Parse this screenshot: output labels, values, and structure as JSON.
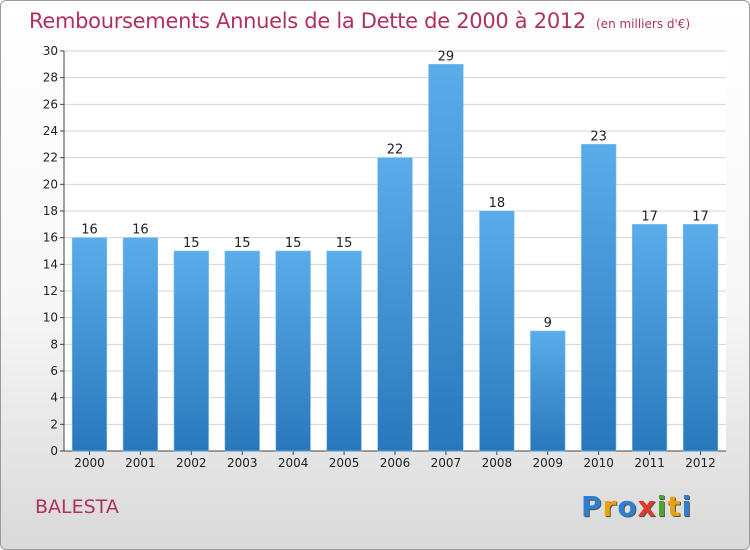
{
  "header": {
    "title": "Remboursements Annuels de la Dette de 2000 à 2012",
    "unit": "(en milliers d'€)"
  },
  "footer": {
    "commune": "BALESTA",
    "logo_letters": [
      "P",
      "r",
      "o",
      "x",
      "i",
      "t",
      "i"
    ],
    "logo_colors": [
      "#2e7fd0",
      "#e8a20c",
      "#2e7fd0",
      "#e03a2a",
      "#49a72e",
      "#e8a20c",
      "#2e7fd0"
    ]
  },
  "chart_data": {
    "type": "bar",
    "title": "Remboursements Annuels de la Dette de 2000 à 2012",
    "xlabel": "",
    "ylabel": "",
    "categories": [
      "2000",
      "2001",
      "2002",
      "2003",
      "2004",
      "2005",
      "2006",
      "2007",
      "2008",
      "2009",
      "2010",
      "2011",
      "2012"
    ],
    "values": [
      16,
      16,
      15,
      15,
      15,
      15,
      22,
      29,
      18,
      9,
      23,
      17,
      17
    ],
    "ylim": [
      0,
      30
    ],
    "yticks": [
      0,
      2,
      4,
      6,
      8,
      10,
      12,
      14,
      16,
      18,
      20,
      22,
      24,
      26,
      28,
      30
    ],
    "grid": true,
    "bar_color_top": "#5aacea",
    "bar_color_bottom": "#2a78bc"
  }
}
